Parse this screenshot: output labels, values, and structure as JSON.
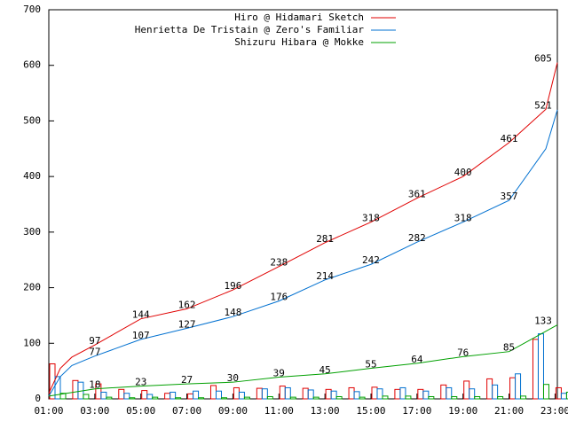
{
  "chart_data": {
    "type": "line",
    "xlim": [
      1,
      23.1
    ],
    "xticks": [
      {
        "value": 1,
        "label": "01:00"
      },
      {
        "value": 3,
        "label": "03:00"
      },
      {
        "value": 5,
        "label": "05:00"
      },
      {
        "value": 7,
        "label": "07:00"
      },
      {
        "value": 9,
        "label": "09:00"
      },
      {
        "value": 11,
        "label": "11:00"
      },
      {
        "value": 13,
        "label": "13:00"
      },
      {
        "value": 15,
        "label": "15:00"
      },
      {
        "value": 17,
        "label": "17:00"
      },
      {
        "value": 19,
        "label": "19:00"
      },
      {
        "value": 21,
        "label": "21:00"
      },
      {
        "value": 23,
        "label": "23:00"
      }
    ],
    "ylim": [
      0,
      700
    ],
    "yticks": [
      0,
      100,
      200,
      300,
      400,
      500,
      600,
      700
    ],
    "legend": "top-right",
    "bar_x": [
      1,
      2,
      3,
      4,
      5,
      6,
      7,
      8,
      9,
      10,
      11,
      12,
      13,
      14,
      15,
      16,
      17,
      18,
      19,
      20,
      21,
      22,
      23
    ],
    "series": [
      {
        "name": "Hiro @ Hidamari Sketch",
        "color": "#e00000",
        "x": [
          1,
          1.5,
          2,
          3,
          5,
          7,
          9,
          11,
          13,
          15,
          17,
          19,
          21,
          22.6,
          23.1
        ],
        "values": [
          10,
          55,
          75,
          97,
          144,
          162,
          196,
          238,
          281,
          318,
          361,
          400,
          461,
          521,
          605
        ],
        "value_labels": [
          null,
          null,
          null,
          "97",
          "144",
          "162",
          "196",
          "238",
          "281",
          "318",
          "361",
          "400",
          "461",
          "521",
          "605"
        ],
        "hourly": [
          63,
          33,
          27,
          17,
          15,
          10,
          9,
          24,
          20,
          19,
          23,
          19,
          17,
          20,
          21,
          17,
          17,
          25,
          32,
          36,
          38,
          107,
          20
        ]
      },
      {
        "name": "Henrietta De Tristain @ Zero's Familiar",
        "color": "#0070d0",
        "x": [
          1,
          1.5,
          2,
          3,
          5,
          7,
          9,
          11,
          13,
          15,
          17,
          19,
          21,
          22.6,
          23.1
        ],
        "values": [
          5,
          40,
          60,
          77,
          107,
          127,
          148,
          176,
          214,
          242,
          282,
          318,
          357,
          450,
          520
        ],
        "value_labels": [
          null,
          null,
          null,
          "77",
          "107",
          "127",
          "148",
          "176",
          "214",
          "242",
          "282",
          "318",
          "357",
          null,
          null
        ],
        "hourly": [
          40,
          30,
          12,
          10,
          8,
          12,
          14,
          14,
          12,
          18,
          20,
          16,
          14,
          13,
          18,
          20,
          14,
          20,
          18,
          25,
          45,
          117,
          10
        ]
      },
      {
        "name": "Shizuru Hibara @ Mokke",
        "color": "#00a000",
        "x": [
          1,
          3,
          5,
          7,
          9,
          11,
          13,
          15,
          17,
          19,
          21,
          23.1
        ],
        "values": [
          5,
          18,
          23,
          27,
          30,
          39,
          45,
          55,
          64,
          76,
          85,
          133
        ],
        "value_labels": [
          null,
          "18",
          "23",
          "27",
          "30",
          "39",
          "45",
          "55",
          "64",
          "76",
          "85",
          "133"
        ],
        "hourly": [
          10,
          8,
          3,
          2,
          3,
          2,
          2,
          2,
          3,
          4,
          3,
          3,
          4,
          3,
          5,
          5,
          4,
          4,
          4,
          4,
          5,
          26,
          12
        ]
      }
    ]
  }
}
